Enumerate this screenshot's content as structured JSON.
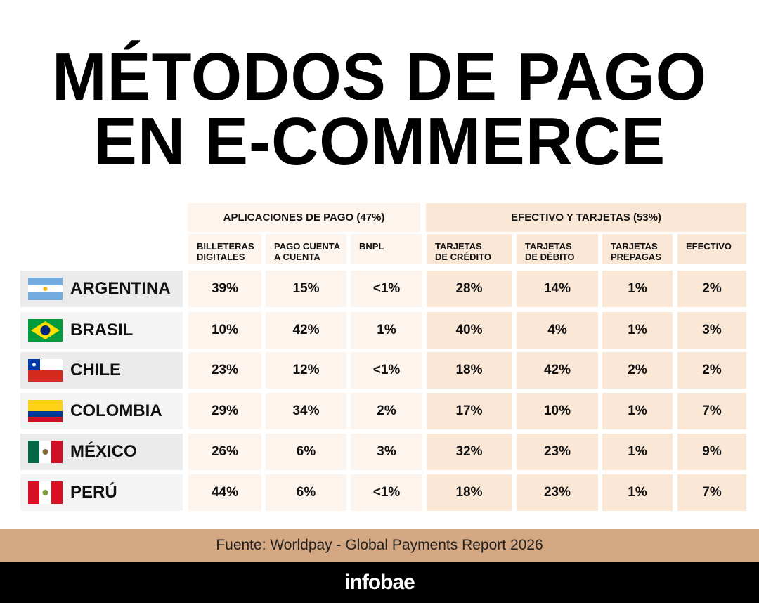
{
  "header": {
    "title": [
      "MÉTODOS DE PAGO",
      "EN E-COMMERCE"
    ]
  },
  "table": {
    "groups": [
      "APLICACIONES DE PAGO (47%)",
      "EFECTIVO Y TARJETAS (53%)"
    ],
    "columns": [
      [
        "BILLETERAS",
        "DIGITALES"
      ],
      [
        "PAGO CUENTA",
        "A CUENTA"
      ],
      [
        "BNPL"
      ],
      [
        "TARJETAS",
        "DE CRÉDITO"
      ],
      [
        "TARJETAS",
        "DE DÉBITO"
      ],
      [
        "TARJETAS",
        "PREPAGAS"
      ],
      [
        "EFECTIVO"
      ]
    ],
    "rows": [
      {
        "country": "ARGENTINA",
        "values": [
          "39%",
          "15%",
          "<1%",
          "28%",
          "14%",
          "1%",
          "2%"
        ]
      },
      {
        "country": "BRASIL",
        "values": [
          "10%",
          "42%",
          "1%",
          "40%",
          "4%",
          "1%",
          "3%"
        ]
      },
      {
        "country": "CHILE",
        "values": [
          "23%",
          "12%",
          "<1%",
          "18%",
          "42%",
          "2%",
          "2%"
        ]
      },
      {
        "country": "COLOMBIA",
        "values": [
          "29%",
          "34%",
          "2%",
          "17%",
          "10%",
          "1%",
          "7%"
        ]
      },
      {
        "country": "MÉXICO",
        "values": [
          "26%",
          "6%",
          "3%",
          "32%",
          "23%",
          "1%",
          "9%"
        ]
      },
      {
        "country": "PERÚ",
        "values": [
          "44%",
          "6%",
          "<1%",
          "18%",
          "23%",
          "1%",
          "7%"
        ]
      }
    ]
  },
  "footer": {
    "source": "Fuente: Worldpay - Global Payments Report 2026",
    "brand": "infobae"
  }
}
